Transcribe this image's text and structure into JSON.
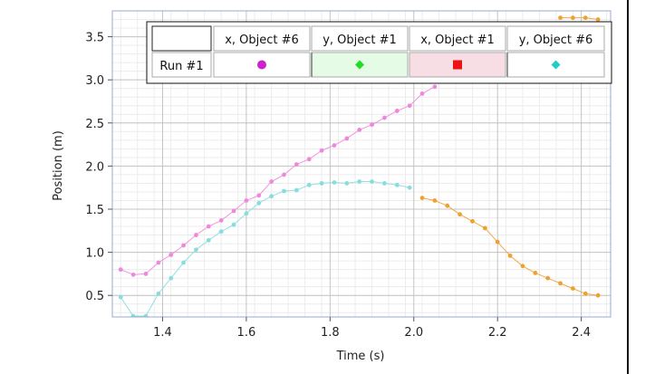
{
  "chart_data": {
    "type": "scatter",
    "xlabel": "Time (s)",
    "ylabel": "Position (m)",
    "xlim": [
      1.28,
      2.47
    ],
    "ylim": [
      0.25,
      3.8
    ],
    "xticks": [
      "1.4",
      "1.6",
      "1.8",
      "2.0",
      "2.2",
      "2.4"
    ],
    "yticks": [
      "0.5",
      "1.0",
      "1.5",
      "2.0",
      "2.5",
      "3.0",
      "3.5"
    ],
    "grid": true,
    "legend_placement": "top-right",
    "legend": {
      "run_label": "Run #1",
      "headers": [
        "x, Object #6",
        "y, Object #1",
        "x, Object #1",
        "y, Object #6"
      ],
      "colors": [
        "#cc22cc",
        "#22dd22",
        "#ee1111",
        "#22cccc"
      ],
      "cell_backgrounds": [
        "#ffffff",
        "#e6fbe6",
        "#f7dde4",
        "#ffffff"
      ],
      "markers": [
        "circle",
        "diamond",
        "square",
        "diamond"
      ]
    },
    "series": [
      {
        "color": "#ee88dd",
        "x": [
          1.3,
          1.33,
          1.36,
          1.39,
          1.42,
          1.45,
          1.48,
          1.51,
          1.54,
          1.57,
          1.6,
          1.63,
          1.66,
          1.69,
          1.72,
          1.75,
          1.78,
          1.81,
          1.84,
          1.87,
          1.9,
          1.93,
          1.96,
          1.99,
          2.02,
          2.05
        ],
        "y": [
          0.8,
          0.74,
          0.75,
          0.88,
          0.97,
          1.08,
          1.2,
          1.3,
          1.37,
          1.48,
          1.6,
          1.66,
          1.82,
          1.9,
          2.02,
          2.08,
          2.18,
          2.24,
          2.32,
          2.42,
          2.48,
          2.56,
          2.64,
          2.7,
          2.84,
          2.92
        ]
      },
      {
        "color": "#88dddd",
        "x": [
          1.3,
          1.33,
          1.36,
          1.39,
          1.42,
          1.45,
          1.48,
          1.51,
          1.54,
          1.57,
          1.6,
          1.63,
          1.66,
          1.69,
          1.72,
          1.75,
          1.78,
          1.81,
          1.84,
          1.87,
          1.9,
          1.93,
          1.96,
          1.99
        ],
        "y": [
          0.48,
          0.26,
          0.26,
          0.52,
          0.7,
          0.88,
          1.03,
          1.14,
          1.24,
          1.32,
          1.45,
          1.57,
          1.65,
          1.71,
          1.72,
          1.78,
          1.8,
          1.81,
          1.8,
          1.82,
          1.82,
          1.8,
          1.78,
          1.75
        ]
      },
      {
        "color": "#f0a030",
        "x": [
          2.02,
          2.05,
          2.08,
          2.11,
          2.14,
          2.17,
          2.2,
          2.23,
          2.26,
          2.29,
          2.32,
          2.35,
          2.38,
          2.41,
          2.44
        ],
        "y": [
          1.63,
          1.6,
          1.54,
          1.44,
          1.36,
          1.28,
          1.12,
          0.96,
          0.84,
          0.76,
          0.7,
          0.64,
          0.58,
          0.52,
          0.5
        ]
      },
      {
        "color": "#f0a030",
        "x": [
          2.35,
          2.38,
          2.41,
          2.44
        ],
        "y": [
          3.72,
          3.72,
          3.72,
          3.7
        ]
      }
    ]
  }
}
